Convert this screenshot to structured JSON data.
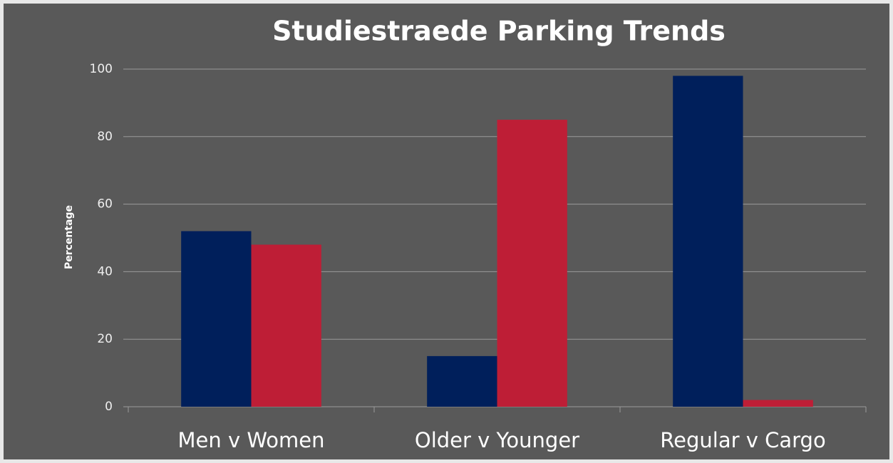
{
  "chart_data": {
    "type": "bar",
    "title": "Studiestraede Parking Trends",
    "y_label": "Percentage",
    "categories": [
      "Men v Women",
      "Older v Younger",
      "Regular v Cargo"
    ],
    "series": [
      {
        "color": "#001f5b",
        "values": [
          52,
          15,
          98
        ]
      },
      {
        "color": "#be1e36",
        "values": [
          48,
          85,
          2
        ]
      }
    ],
    "ylim": [
      0,
      100
    ],
    "yticks": [
      0,
      20,
      40,
      60,
      80,
      100
    ],
    "grid": true
  }
}
